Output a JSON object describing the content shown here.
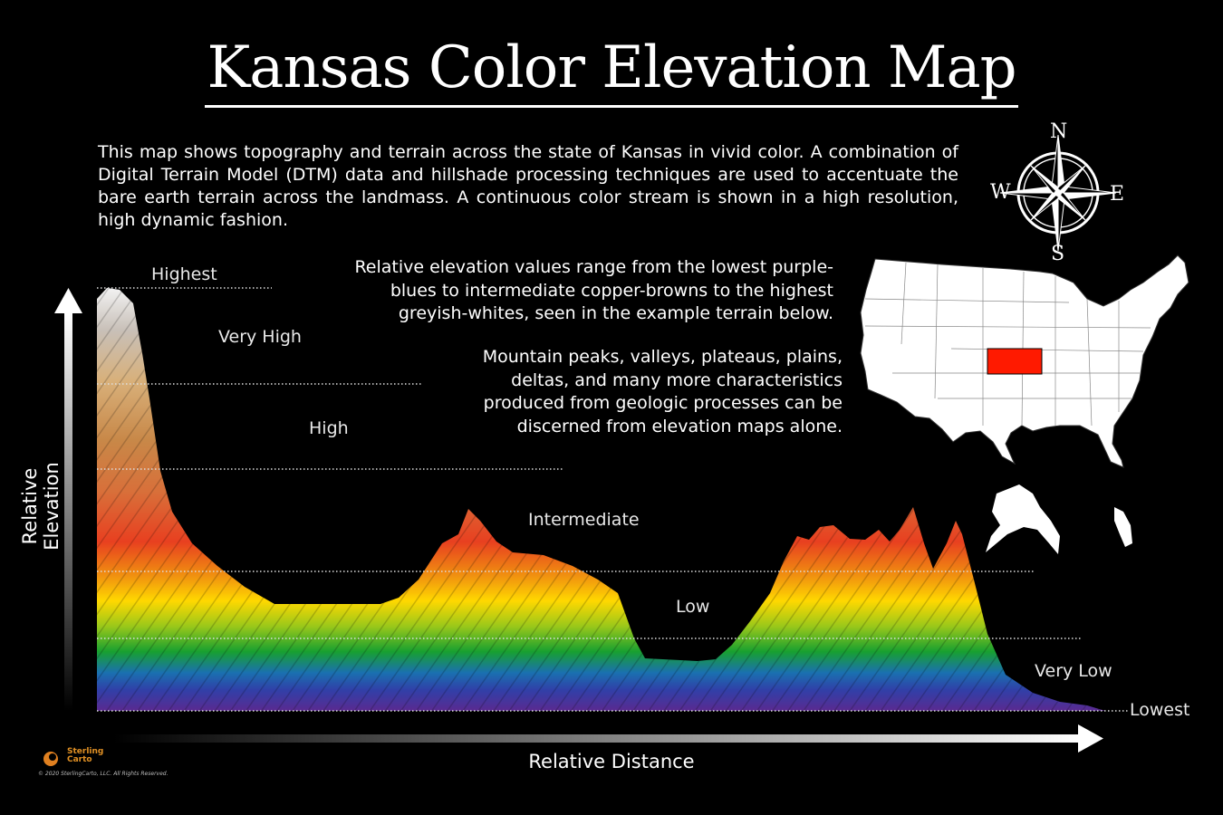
{
  "title": "Kansas Color Elevation Map",
  "intro": "This map shows topography and terrain across the state of Kansas in vivid color. A combination of Digital Terrain Model (DTM) data and hillshade processing techniques are used to accentuate the bare earth terrain across the landmass. A continuous color stream is shown in a high resolution, high dynamic fashion.",
  "description_1": "Relative elevation values range from the lowest purple-blues to intermediate copper-browns to the highest greyish-whites, seen in the example terrain below.",
  "description_2": "Mountain peaks, valleys, plateaus, plains, deltas, and many more characteristics produced from geologic processes can be discerned from elevation maps alone.",
  "elevation_levels": {
    "highest": "Highest",
    "very_high": "Very High",
    "high": "High",
    "intermediate": "Intermediate",
    "low": "Low",
    "very_low": "Very Low",
    "lowest": "Lowest"
  },
  "axes": {
    "y_label": "Relative Elevation",
    "x_label": "Relative Distance"
  },
  "compass": {
    "north": "N",
    "south": "S",
    "east": "E",
    "west": "W"
  },
  "locator_map": {
    "highlight_state": "Kansas",
    "highlight_color": "#ff0000",
    "base_color": "#ffffff"
  },
  "colors": {
    "lowest": "#3a2a8a",
    "low": "#20b020",
    "intermediate": "#ffd200",
    "high": "#c87a3a",
    "highest": "#e8e8e8"
  },
  "branding": {
    "logo_line1": "Sterling",
    "logo_line2": "Carto",
    "copyright": "© 2020 SterlingCarto, LLC. All Rights Reserved."
  }
}
